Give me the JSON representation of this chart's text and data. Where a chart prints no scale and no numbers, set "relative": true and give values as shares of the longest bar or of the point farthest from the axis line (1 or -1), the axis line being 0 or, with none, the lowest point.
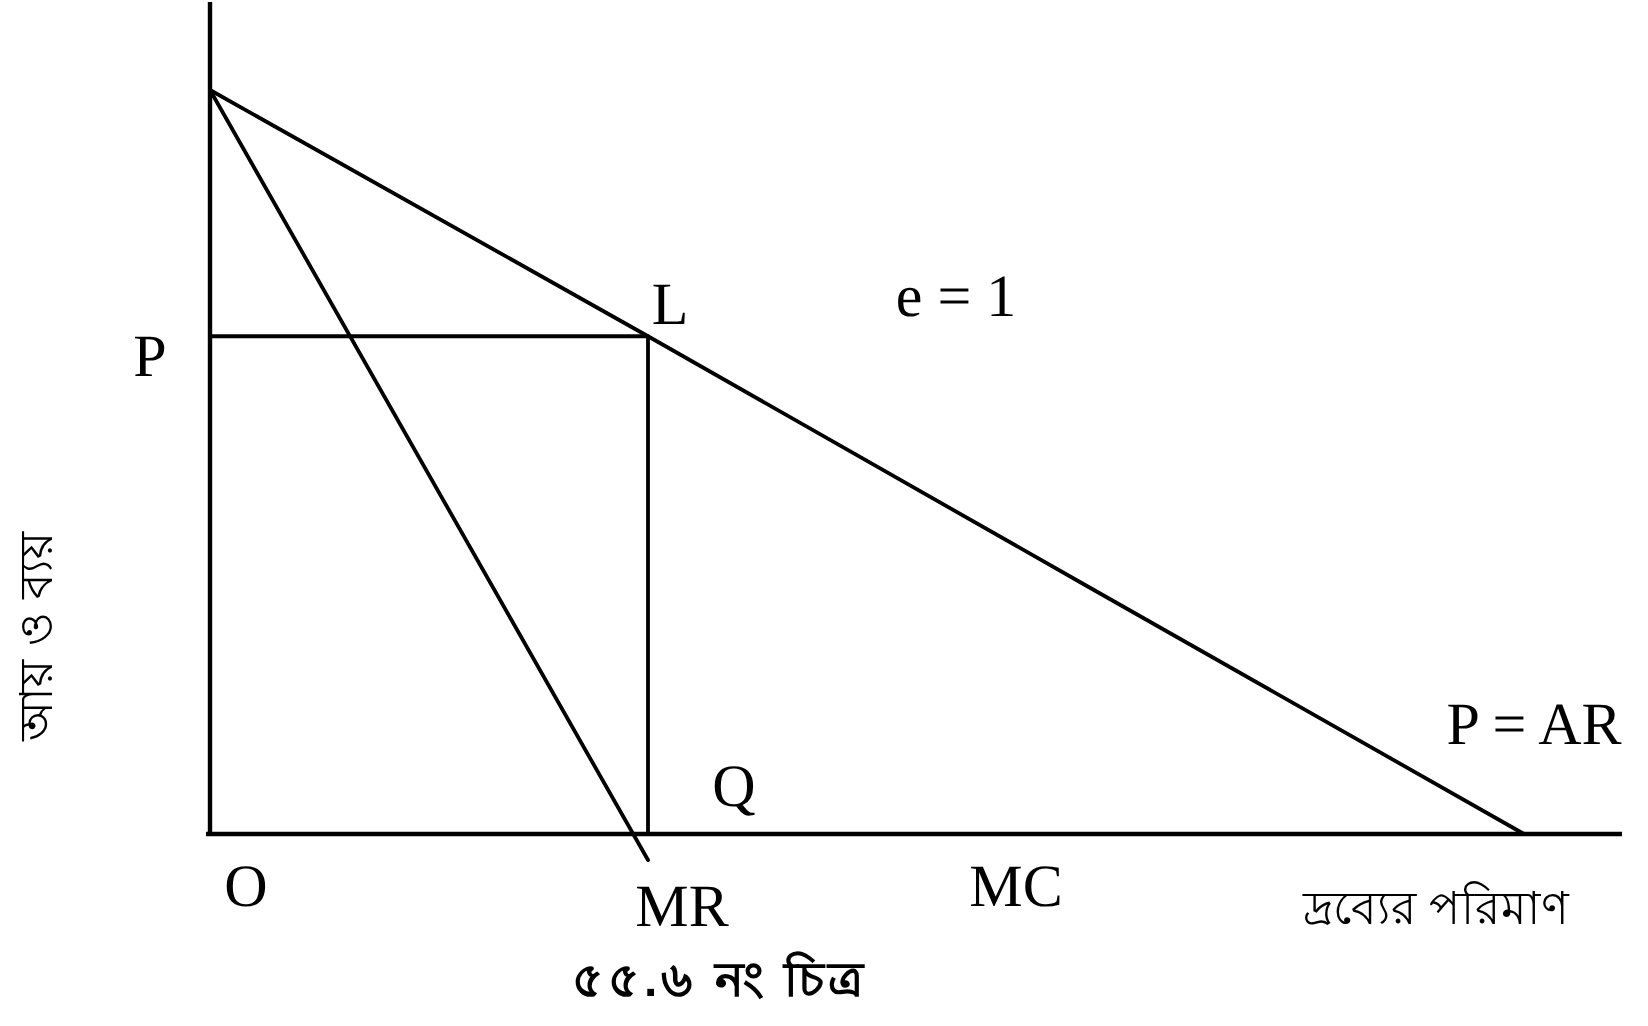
{
  "chart_data": {
    "type": "line",
    "relative": true,
    "title": "৫৫.৬ নং চিত্র",
    "xlabel": "দ্রব্যের পরিমাণ",
    "ylabel": "আয় ও ব্যয়",
    "categories": [
      null,
      null,
      null,
      null
    ],
    "series": [
      {
        "name": "P = AR",
        "color": "#000000",
        "values": [
          1,
          0.669,
          0.334,
          0
        ]
      },
      {
        "name": "MR",
        "color": "#000000",
        "values": [
          1,
          -0.035,
          null,
          null
        ]
      },
      {
        "type": "step",
        "color": "#000000",
        "values": [
          0.669,
          0,
          null,
          null
        ]
      }
    ],
    "annotations": [
      "P",
      {
        "text": "L",
        "y": 0.669
      },
      "Q",
      "O",
      "e = 1",
      "MC"
    ],
    "legend": false
  }
}
